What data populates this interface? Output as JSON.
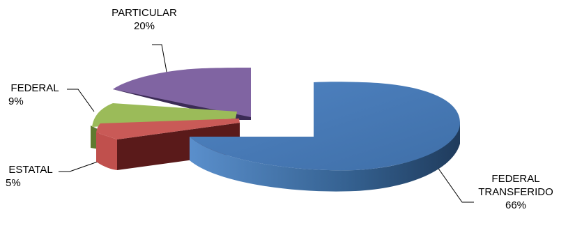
{
  "chart_data": {
    "type": "pie",
    "style": "3d-exploded",
    "slices": [
      {
        "label": "FEDERAL TRANSFERIDO",
        "label_lines": [
          "FEDERAL",
          "TRANSFERIDO"
        ],
        "value": 66,
        "value_label": "66%",
        "color": "#4A7EBB"
      },
      {
        "label": "ESTATAL",
        "label_lines": [
          "ESTATAL"
        ],
        "value": 5,
        "value_label": "5%",
        "color": "#C0504D"
      },
      {
        "label": "FEDERAL",
        "label_lines": [
          "FEDERAL"
        ],
        "value": 9,
        "value_label": "9%",
        "color": "#9BBB59"
      },
      {
        "label": "PARTICULAR",
        "label_lines": [
          "PARTICULAR"
        ],
        "value": 20,
        "value_label": "20%",
        "color": "#8064A2"
      }
    ]
  }
}
